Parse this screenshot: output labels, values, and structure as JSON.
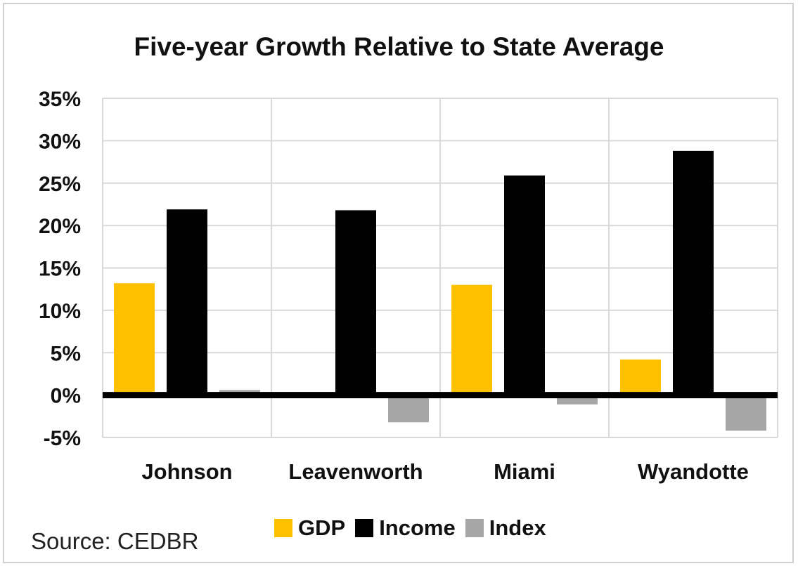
{
  "chart_data": {
    "type": "bar",
    "title": "Five-year Growth Relative to State Average",
    "categories": [
      "Johnson",
      "Leavenworth",
      "Miami",
      "Wyandotte"
    ],
    "series": [
      {
        "name": "GDP",
        "color": "#FFC000",
        "values": [
          0.132,
          0.0,
          0.13,
          0.042
        ]
      },
      {
        "name": "Income",
        "color": "#000000",
        "values": [
          0.219,
          0.218,
          0.259,
          0.288
        ]
      },
      {
        "name": "Index",
        "color": "#A6A6A6",
        "values": [
          0.006,
          -0.032,
          -0.011,
          -0.042
        ]
      }
    ],
    "ylim": [
      -0.05,
      0.35
    ],
    "yticks": [
      {
        "value": 0.35,
        "label": "35%"
      },
      {
        "value": 0.3,
        "label": "30%"
      },
      {
        "value": 0.25,
        "label": "25%"
      },
      {
        "value": 0.2,
        "label": "20%"
      },
      {
        "value": 0.15,
        "label": "15%"
      },
      {
        "value": 0.1,
        "label": "10%"
      },
      {
        "value": 0.05,
        "label": "5%"
      },
      {
        "value": 0.0,
        "label": "0%"
      },
      {
        "value": -0.05,
        "label": "-5%"
      }
    ],
    "xlabel": "",
    "ylabel": "",
    "grid": true,
    "legend": "bottom"
  },
  "source": "Source: CEDBR"
}
